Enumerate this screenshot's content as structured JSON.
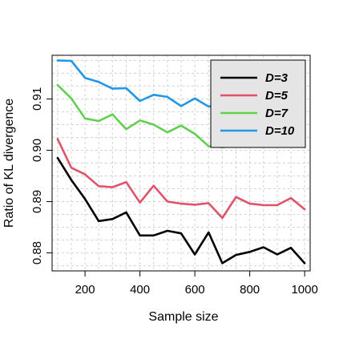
{
  "chart_data": {
    "type": "line",
    "title": "",
    "xlabel": "Sample size",
    "ylabel": "Ratio of KL divergence",
    "xlim": [
      80,
      1020
    ],
    "ylim": [
      0.8765,
      0.9185
    ],
    "x_ticks": [
      200,
      400,
      600,
      800,
      1000
    ],
    "y_ticks": [
      0.88,
      0.89,
      0.9,
      0.91
    ],
    "y_tick_labels": [
      "0.88",
      "0.89",
      "0.90",
      "0.91"
    ],
    "grid": true,
    "legend_position": "top-right",
    "x": [
      100,
      150,
      200,
      250,
      300,
      350,
      400,
      450,
      500,
      550,
      600,
      650,
      700,
      750,
      800,
      850,
      900,
      950,
      1000
    ],
    "series": [
      {
        "name": "D=3",
        "color": "#000000",
        "values": [
          0.8985,
          0.8942,
          0.8905,
          0.8862,
          0.8866,
          0.8879,
          0.8834,
          0.8834,
          0.8843,
          0.8838,
          0.8797,
          0.884,
          0.878,
          0.8796,
          0.8802,
          0.8811,
          0.8797,
          0.881,
          0.878
        ]
      },
      {
        "name": "D=5",
        "color": "#DF536B",
        "values": [
          0.9022,
          0.8966,
          0.8953,
          0.893,
          0.8928,
          0.8938,
          0.8898,
          0.8931,
          0.89,
          0.8896,
          0.8894,
          0.8897,
          0.8868,
          0.8909,
          0.8896,
          0.8893,
          0.8893,
          0.8907,
          0.8885
        ]
      },
      {
        "name": "D=7",
        "color": "#61D04F",
        "values": [
          0.9127,
          0.9101,
          0.9062,
          0.9057,
          0.907,
          0.9041,
          0.9058,
          0.905,
          0.9035,
          0.9048,
          0.9032,
          0.9008,
          0.9006,
          0.9008,
          0.901,
          0.9008,
          0.902,
          0.9025,
          0.9007
        ]
      },
      {
        "name": "D=10",
        "color": "#2297E6",
        "values": [
          0.9175,
          0.9174,
          0.9141,
          0.9133,
          0.912,
          0.9121,
          0.9096,
          0.9108,
          0.9104,
          0.9086,
          0.9101,
          0.9085,
          0.909,
          0.9093,
          0.909,
          0.9092,
          0.9095,
          0.909,
          0.9088
        ]
      }
    ]
  }
}
